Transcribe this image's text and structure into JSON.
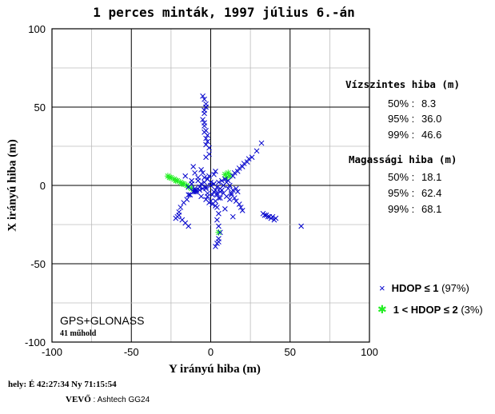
{
  "chart_data": {
    "type": "scatter",
    "title": "1 perces minták, 1997 július 6.-án",
    "xlabel": "Y irányú hiba (m)",
    "ylabel": "X irányú hiba (m)",
    "xlim": [
      -100,
      100
    ],
    "ylim": [
      -100,
      100
    ],
    "xticks": [
      -100,
      -50,
      0,
      50,
      100
    ],
    "yticks": [
      100,
      50,
      0,
      -50,
      -100
    ],
    "grid": true,
    "series": [
      {
        "name": "HDOP ≤ 1 (97%)",
        "marker": "x",
        "color": "#0000cc",
        "x": [
          0,
          2,
          -3,
          5,
          -5,
          8,
          -8,
          3,
          -2,
          6,
          -6,
          10,
          -10,
          12,
          -12,
          4,
          -4,
          1,
          -1,
          7,
          -7,
          9,
          -9,
          2,
          -2,
          5,
          -5,
          3,
          -3,
          0,
          11,
          14,
          17,
          20,
          23,
          26,
          29,
          32,
          15,
          18,
          21,
          24,
          -3,
          -3,
          -4,
          -4,
          -5,
          -4,
          -3,
          -4,
          -5,
          -3,
          -4,
          -4,
          -3,
          -2,
          -2,
          -1,
          -1,
          -3,
          -10,
          -13,
          -15,
          -17,
          -19,
          -20,
          -21,
          -18,
          -16,
          -14,
          -20,
          -22,
          3,
          4,
          5,
          4,
          5,
          6,
          5,
          4,
          3,
          5,
          15,
          18,
          20,
          17,
          14,
          13,
          16,
          19,
          33,
          35,
          37,
          39,
          41,
          38,
          36,
          34,
          40,
          57,
          -8,
          -10,
          -12,
          -6,
          -14,
          -16,
          -11,
          2,
          4,
          6,
          8,
          10,
          12,
          14,
          16,
          -2,
          -6,
          -10,
          -14,
          1,
          -1,
          3,
          -3,
          7,
          -7,
          9,
          11,
          -9,
          -11,
          13,
          -13,
          0,
          2,
          -2,
          4,
          -4,
          6
        ],
        "y": [
          0,
          1,
          -1,
          2,
          -2,
          0,
          3,
          -3,
          4,
          -4,
          1,
          2,
          -2,
          0,
          1,
          -5,
          5,
          -6,
          6,
          3,
          -3,
          4,
          -4,
          7,
          -7,
          -8,
          8,
          9,
          -9,
          -10,
          3,
          6,
          9,
          12,
          15,
          18,
          22,
          27,
          8,
          11,
          14,
          17,
          26,
          30,
          34,
          38,
          42,
          46,
          50,
          55,
          57,
          52,
          48,
          40,
          35,
          32,
          28,
          24,
          20,
          18,
          -3,
          -6,
          -9,
          -11,
          -14,
          -17,
          -20,
          -22,
          -24,
          -26,
          -19,
          -21,
          -10,
          -14,
          -18,
          -22,
          -26,
          -30,
          -34,
          -37,
          -39,
          -36,
          -8,
          -12,
          -16,
          -4,
          -20,
          -6,
          -10,
          -14,
          -18,
          -19,
          -20,
          -20,
          -21,
          -21,
          -20,
          -19,
          -22,
          -26,
          5,
          8,
          3,
          10,
          -1,
          6,
          12,
          -4,
          -6,
          -8,
          -5,
          -7,
          -9,
          -3,
          -2,
          -5,
          -7,
          -4,
          -6,
          -12,
          -11,
          -13,
          -2,
          -3,
          -1,
          -15,
          -2,
          -3,
          -4,
          -5,
          -6,
          2,
          1,
          4,
          -1,
          2,
          -2
        ],
        "pct": "97%"
      },
      {
        "name": "1 < HDOP ≤ 2 (3%)",
        "marker": "*",
        "color": "#22ee22",
        "x": [
          -27,
          -25,
          -23,
          -21,
          -19,
          -17,
          -15,
          -14,
          -12,
          9,
          11,
          12,
          10,
          -26,
          -22,
          -18,
          5
        ],
        "y": [
          6,
          5,
          4,
          3,
          2,
          1,
          0,
          -1,
          -2,
          7,
          8,
          6,
          5,
          5,
          3,
          1,
          -30
        ],
        "pct": "3%"
      }
    ],
    "stats": {
      "horizontal_title": "Vízszintes hiba (m)",
      "horizontal": [
        {
          "label": "50% :",
          "value": "8.3"
        },
        {
          "label": "95% :",
          "value": "36.0"
        },
        {
          "label": "99% :",
          "value": "46.6"
        }
      ],
      "vertical_title": "Magassági hiba (m)",
      "vertical": [
        {
          "label": "50% :",
          "value": "18.1"
        },
        {
          "label": "95% :",
          "value": "62.4"
        },
        {
          "label": "99% :",
          "value": "68.1"
        }
      ]
    },
    "legend": {
      "position": "right",
      "items": [
        {
          "symbol": "×",
          "color": "#0000cc",
          "bold": "HDOP ≤ 1",
          "rest": " (97%)"
        },
        {
          "symbol": "✱",
          "color": "#22ee22",
          "bold": "1 < HDOP ≤ 2",
          "rest": " (3%)"
        }
      ]
    },
    "annotation": {
      "system": "GPS+GLONASS",
      "satellites": "41 műhold"
    }
  },
  "footer": {
    "location": "hely: É 42:27:34   Ny 71:15:54",
    "receiver_label": "VEVŐ",
    "receiver_value": " :  Ashtech GG24"
  }
}
